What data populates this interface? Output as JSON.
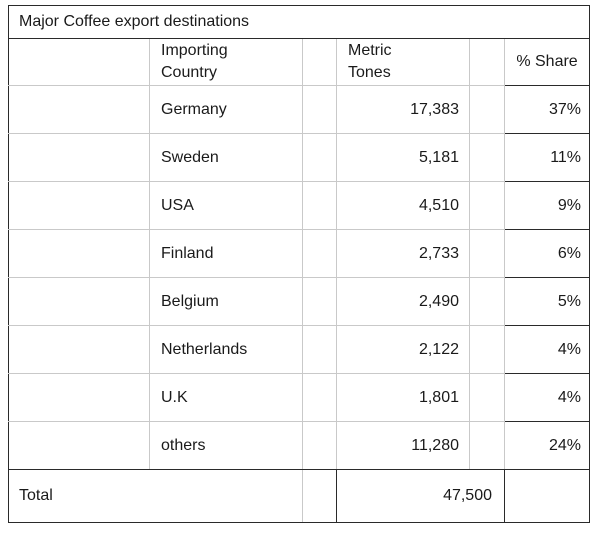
{
  "title": "Major Coffee export destinations",
  "headers": {
    "country_line1": "Importing",
    "country_line2": "Country",
    "metric_line1": "Metric",
    "metric_line2": "Tones",
    "share": "% Share"
  },
  "rows": [
    {
      "country": "Germany",
      "tonnes": "17,383",
      "share": "37%"
    },
    {
      "country": "Sweden",
      "tonnes": "5,181",
      "share": "11%"
    },
    {
      "country": "USA",
      "tonnes": "4,510",
      "share": "9%"
    },
    {
      "country": "Finland",
      "tonnes": "2,733",
      "share": "6%"
    },
    {
      "country": "Belgium",
      "tonnes": "2,490",
      "share": "5%"
    },
    {
      "country": "Netherlands",
      "tonnes": "2,122",
      "share": "4%"
    },
    {
      "country": "U.K",
      "tonnes": "1,801",
      "share": "4%"
    },
    {
      "country": "others",
      "tonnes": "11,280",
      "share": "24%"
    }
  ],
  "total": {
    "label": "Total",
    "value": "47,500"
  }
}
